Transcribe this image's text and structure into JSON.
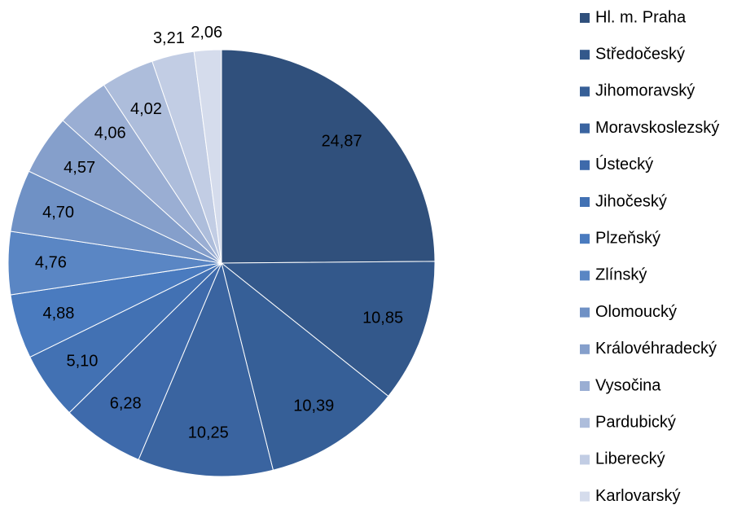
{
  "chart_data": {
    "type": "pie",
    "categories": [
      "Hl. m. Praha",
      "Středočeský",
      "Jihomoravský",
      "Moravskoslezský",
      "Ústecký",
      "Jihočeský",
      "Plzeňský",
      "Zlínský",
      "Olomoucký",
      "Královéhradecký",
      "Vysočina",
      "Pardubický",
      "Liberecký",
      "Karlovarský"
    ],
    "values": [
      24.87,
      10.85,
      10.39,
      10.25,
      6.28,
      5.1,
      4.88,
      4.76,
      4.7,
      4.57,
      4.06,
      4.02,
      3.21,
      2.06
    ],
    "value_labels": [
      "24,87",
      "10,85",
      "10,39",
      "10,25",
      "6,28",
      "5,10",
      "4,88",
      "4,76",
      "4,70",
      "4,57",
      "4,06",
      "4,02",
      "3,21",
      "2,06"
    ],
    "colors": [
      "#30507c",
      "#33588b",
      "#365f97",
      "#3a64a0",
      "#3e6aab",
      "#4271b3",
      "#4a7bbf",
      "#5a86c4",
      "#6f91c5",
      "#859fcb",
      "#9aaed3",
      "#adbddb",
      "#c2cde4",
      "#d5dcec"
    ],
    "legend_position": "right"
  }
}
